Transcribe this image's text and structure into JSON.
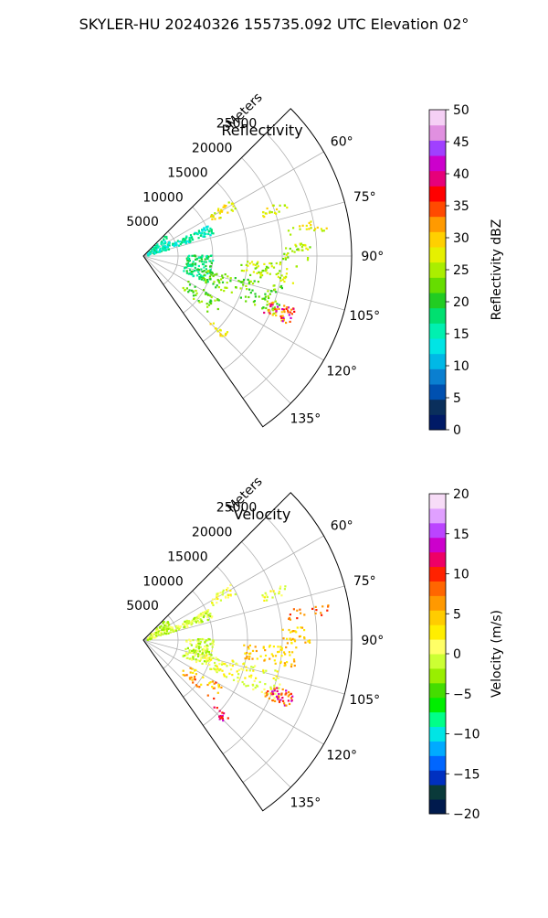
{
  "title": "SKYLER-HU  20240326  155735.092 UTC Elevation 02°",
  "chart_data": [
    {
      "type": "polar-ppi",
      "title": "Reflectivity",
      "range_label": "Meters",
      "range_ticks": [
        "5000",
        "10000",
        "15000",
        "20000",
        "25000"
      ],
      "range_values": [
        5000,
        10000,
        15000,
        20000,
        25000
      ],
      "rmax": 30000,
      "azimuth_range_deg": [
        45,
        145
      ],
      "azimuth_ticks": [
        "60°",
        "75°",
        "90°",
        "105°",
        "120°",
        "135°"
      ],
      "azimuth_tick_values": [
        60,
        75,
        90,
        105,
        120,
        135
      ],
      "colorbar": {
        "label": "Reflectivity dBZ",
        "min": 0,
        "max": 50,
        "ticks": [
          "0",
          "5",
          "10",
          "15",
          "20",
          "25",
          "30",
          "35",
          "40",
          "45",
          "50"
        ],
        "tick_values": [
          0,
          5,
          10,
          15,
          20,
          25,
          30,
          35,
          40,
          45,
          50
        ]
      }
    },
    {
      "type": "polar-ppi",
      "title": "Velocity",
      "range_label": "Meters",
      "range_ticks": [
        "5000",
        "10000",
        "15000",
        "20000",
        "25000"
      ],
      "range_values": [
        5000,
        10000,
        15000,
        20000,
        25000
      ],
      "rmax": 30000,
      "azimuth_range_deg": [
        45,
        145
      ],
      "azimuth_ticks": [
        "60°",
        "75°",
        "90°",
        "105°",
        "120°",
        "135°"
      ],
      "azimuth_tick_values": [
        60,
        75,
        90,
        105,
        120,
        135
      ],
      "colorbar": {
        "label": "Velocity (m/s)",
        "min": -20,
        "max": 20,
        "ticks": [
          "−20",
          "−15",
          "−10",
          "−5",
          "0",
          "5",
          "10",
          "15",
          "20"
        ],
        "tick_values": [
          -20,
          -15,
          -10,
          -5,
          0,
          5,
          10,
          15,
          20
        ]
      }
    }
  ]
}
